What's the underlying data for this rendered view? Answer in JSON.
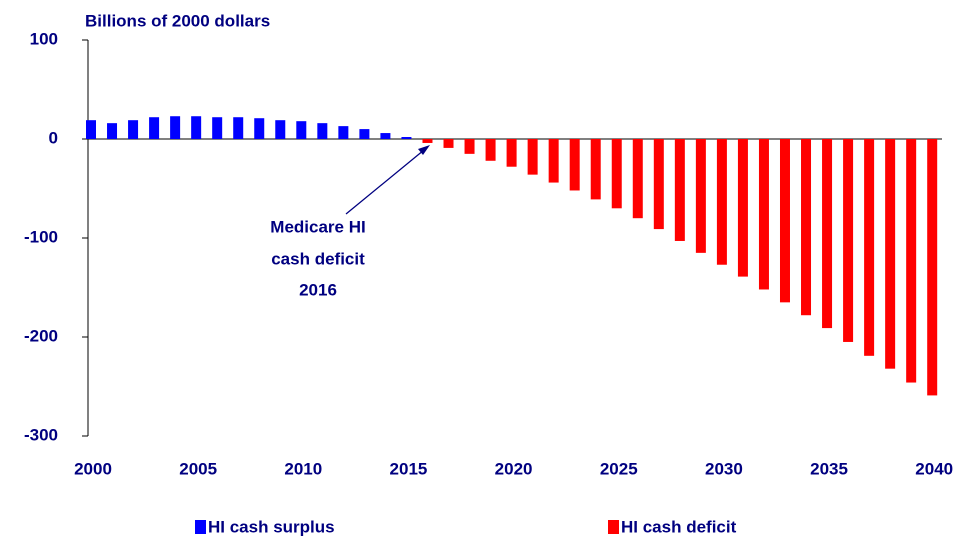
{
  "chart_data": {
    "type": "bar",
    "title": "Billions of 2000 dollars",
    "annotation": [
      "Medicare HI",
      "cash deficit",
      "2016"
    ],
    "categories": [
      2000,
      null,
      null,
      null,
      null,
      2005,
      null,
      null,
      null,
      null,
      2010,
      null,
      null,
      null,
      null,
      2015,
      null,
      null,
      null,
      null,
      2020,
      null,
      null,
      null,
      null,
      2025,
      null,
      null,
      null,
      null,
      2030,
      null,
      null,
      null,
      null,
      2035,
      null,
      null,
      null,
      null,
      2040
    ],
    "series": [
      {
        "name": "HI cash surplus",
        "color": "#0000ff",
        "values": [
          19,
          16,
          19,
          22,
          23,
          23,
          22,
          22,
          21,
          19,
          18,
          16,
          13,
          10,
          6,
          2,
          null,
          null,
          null,
          null,
          null,
          null,
          null,
          null,
          null,
          null,
          null,
          null,
          null,
          null,
          null,
          null,
          null,
          null,
          null,
          null,
          null,
          null,
          null,
          null,
          null
        ]
      },
      {
        "name": "HI cash deficit",
        "color": "#ff0000",
        "values": [
          null,
          null,
          null,
          null,
          null,
          null,
          null,
          null,
          null,
          null,
          null,
          null,
          null,
          null,
          null,
          null,
          -4,
          -9,
          -15,
          -22,
          -28,
          -36,
          -44,
          -52,
          -61,
          -70,
          -80,
          -91,
          -103,
          -115,
          -127,
          -139,
          -152,
          -165,
          -178,
          -191,
          -205,
          -219,
          -232,
          -246,
          -259
        ]
      }
    ],
    "ylim": [
      -300,
      100
    ],
    "yticks": [
      -300,
      -200,
      -100,
      0,
      100
    ],
    "legend": "bottom"
  }
}
